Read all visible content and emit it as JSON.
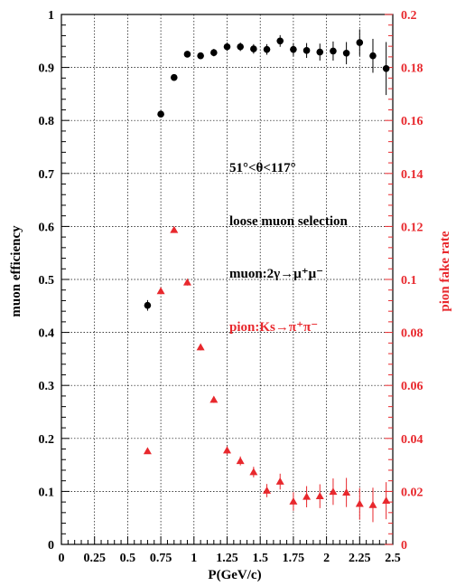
{
  "chart_data": {
    "type": "scatter",
    "xlabel": "P(GeV/c)",
    "ylabel": "muon efficiency",
    "y2label": "pion fake rate",
    "xlim": [
      0,
      2.5
    ],
    "ylim": [
      0,
      1
    ],
    "y2lim": [
      0,
      0.2
    ],
    "xticks": [
      "0",
      "0.25",
      "0.5",
      "0.75",
      "1",
      "1.25",
      "1.5",
      "1.75",
      "2",
      "2.25",
      "2.5"
    ],
    "yticks": [
      "0",
      "0.1",
      "0.2",
      "0.3",
      "0.4",
      "0.5",
      "0.6",
      "0.7",
      "0.8",
      "0.9",
      "1"
    ],
    "y2ticks": [
      "0",
      "0.02",
      "0.04",
      "0.06",
      "0.08",
      "0.1",
      "0.12",
      "0.14",
      "0.16",
      "0.18",
      "0.2"
    ],
    "grid": true,
    "annotations": {
      "theta_range": "51°<θ<117°",
      "selection": "loose muon selection",
      "muon_channel": "muon:2γ→μ⁺μ⁻",
      "pion_channel": "pion:Ks→π⁺π⁻"
    },
    "series": [
      {
        "axis": "left",
        "marker": "circle",
        "color": "#000000",
        "x": [
          0.65,
          0.75,
          0.85,
          0.95,
          1.05,
          1.15,
          1.25,
          1.35,
          1.45,
          1.55,
          1.65,
          1.75,
          1.85,
          1.95,
          2.05,
          2.15,
          2.25,
          2.35,
          2.45
        ],
        "y": [
          0.451,
          0.812,
          0.881,
          0.925,
          0.922,
          0.928,
          0.939,
          0.939,
          0.935,
          0.934,
          0.95,
          0.934,
          0.932,
          0.929,
          0.931,
          0.927,
          0.947,
          0.922,
          0.898
        ],
        "err": [
          0.01,
          0.005,
          0.005,
          0.005,
          0.006,
          0.007,
          0.008,
          0.008,
          0.009,
          0.01,
          0.011,
          0.012,
          0.014,
          0.016,
          0.018,
          0.021,
          0.025,
          0.032,
          0.05
        ]
      },
      {
        "axis": "right",
        "marker": "triangle",
        "color": "#e8282d",
        "x": [
          0.65,
          0.75,
          0.85,
          0.95,
          1.05,
          1.15,
          1.25,
          1.35,
          1.45,
          1.55,
          1.65,
          1.75,
          1.85,
          1.95,
          2.05,
          2.15,
          2.25,
          2.35,
          2.45
        ],
        "y": [
          0.0352,
          0.0956,
          0.1187,
          0.0989,
          0.0744,
          0.0546,
          0.0355,
          0.0315,
          0.0273,
          0.0203,
          0.0237,
          0.0162,
          0.018,
          0.0182,
          0.0199,
          0.0196,
          0.0153,
          0.0149,
          0.0165
        ],
        "err": [
          0.0004,
          0.0012,
          0.001,
          0.0012,
          0.0012,
          0.0012,
          0.0015,
          0.0017,
          0.002,
          0.0025,
          0.003,
          0.0035,
          0.004,
          0.0045,
          0.005,
          0.0055,
          0.006,
          0.0065,
          0.007
        ]
      }
    ]
  }
}
